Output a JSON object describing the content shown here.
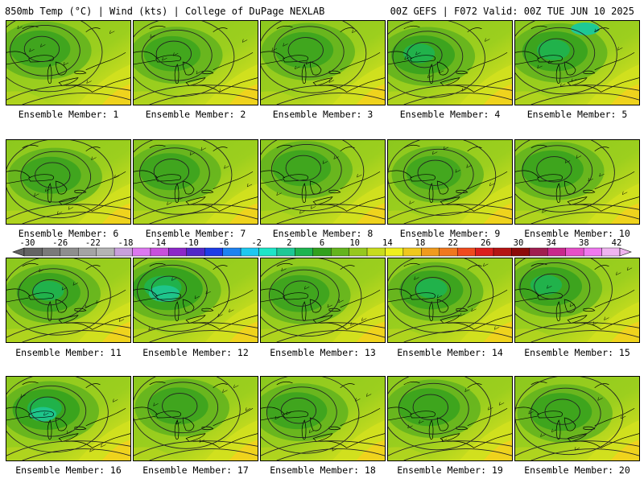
{
  "header": {
    "left": "850mb Temp (°C) | Wind (kts) | College of DuPage NEXLAB",
    "right": "00Z GEFS | F072 Valid: 00Z TUE JUN 10 2025"
  },
  "panels": [
    {
      "label": "Ensemble Member: 1",
      "cool": 0.45
    },
    {
      "label": "Ensemble Member: 2",
      "cool": 0.35
    },
    {
      "label": "Ensemble Member: 3",
      "cool": 0.4
    },
    {
      "label": "Ensemble Member: 4",
      "cool": 0.55
    },
    {
      "label": "Ensemble Member: 5",
      "cool": 0.6
    },
    {
      "label": "Ensemble Member: 6",
      "cool": 0.45
    },
    {
      "label": "Ensemble Member: 7",
      "cool": 0.45
    },
    {
      "label": "Ensemble Member: 8",
      "cool": 0.4
    },
    {
      "label": "Ensemble Member: 9",
      "cool": 0.3
    },
    {
      "label": "Ensemble Member: 10",
      "cool": 0.5
    },
    {
      "label": "Ensemble Member: 11",
      "cool": 0.55
    },
    {
      "label": "Ensemble Member: 12",
      "cool": 0.75
    },
    {
      "label": "Ensemble Member: 13",
      "cool": 0.45
    },
    {
      "label": "Ensemble Member: 14",
      "cool": 0.55
    },
    {
      "label": "Ensemble Member: 15",
      "cool": 0.55
    },
    {
      "label": "Ensemble Member: 16",
      "cool": 0.65
    },
    {
      "label": "Ensemble Member: 17",
      "cool": 0.45
    },
    {
      "label": "Ensemble Member: 18",
      "cool": 0.45
    },
    {
      "label": "Ensemble Member: 19",
      "cool": 0.5
    },
    {
      "label": "Ensemble Member: 20",
      "cool": 0.5
    }
  ],
  "colorbar": {
    "ticks": [
      "-30",
      "-26",
      "-22",
      "-18",
      "-14",
      "-10",
      "-6",
      "-2",
      "2",
      "6",
      "10",
      "14",
      "18",
      "22",
      "26",
      "30",
      "34",
      "38",
      "42"
    ],
    "colors": [
      "#646464",
      "#7a7a7a",
      "#8e8e8e",
      "#a4a4a4",
      "#b4b4b4",
      "#c8a0dc",
      "#dc78f0",
      "#c850dc",
      "#8c28c8",
      "#5028c8",
      "#1e3ce6",
      "#1e82f0",
      "#1ec8f0",
      "#1ee6c8",
      "#1ec896",
      "#1eb450",
      "#32a01e",
      "#64b41e",
      "#96c81e",
      "#c8dc1e",
      "#f0f01e",
      "#f0c81e",
      "#f09b1e",
      "#f0781e",
      "#f04b1e",
      "#dc1e1e",
      "#b41414",
      "#8c0a0a",
      "#a01e50",
      "#c8288c",
      "#e650c8",
      "#f078f0",
      "#f0b4f0"
    ]
  }
}
